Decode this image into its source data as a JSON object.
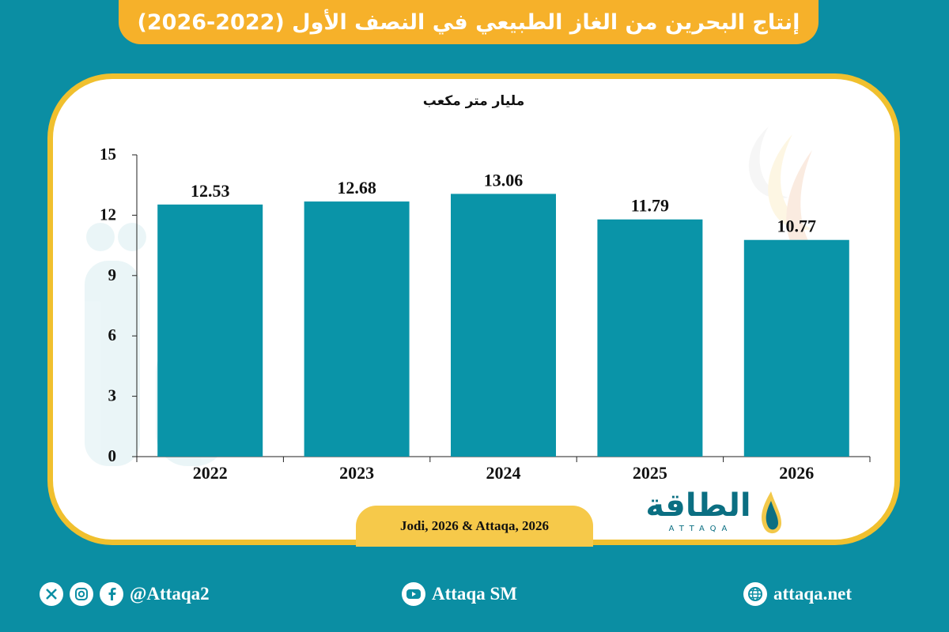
{
  "title": "إنتاج البحرين من الغاز الطبيعي في النصف الأول (2022-2026)",
  "unit_label": "مليار متر مكعب",
  "source": "Jodi, 2026 & Attaqa, 2026",
  "logo": {
    "arabic": "الطاقة",
    "english": "ATTAQA"
  },
  "footer": {
    "social_handle": "@Attaqa2",
    "youtube": "Attaqa SM",
    "website": "attaqa.net",
    "icons": [
      "x-icon",
      "instagram-icon",
      "facebook-icon",
      "youtube-icon",
      "globe-icon"
    ]
  },
  "colors": {
    "background": "#0b8ea3",
    "bar": "#0a94a8",
    "banner": "#f6b12a",
    "card_border": "#f0c02e"
  },
  "chart_data": {
    "type": "bar",
    "categories": [
      "2022",
      "2023",
      "2024",
      "2025",
      "2026"
    ],
    "values": [
      12.53,
      12.68,
      13.06,
      11.79,
      10.77
    ],
    "value_labels": [
      "12.53",
      "12.68",
      "13.06",
      "11.79",
      "10.77"
    ],
    "ylabel": "مليار متر مكعب",
    "ylim": [
      0,
      15
    ],
    "yticks": [
      0,
      3,
      6,
      9,
      12,
      15
    ],
    "grid": false
  }
}
